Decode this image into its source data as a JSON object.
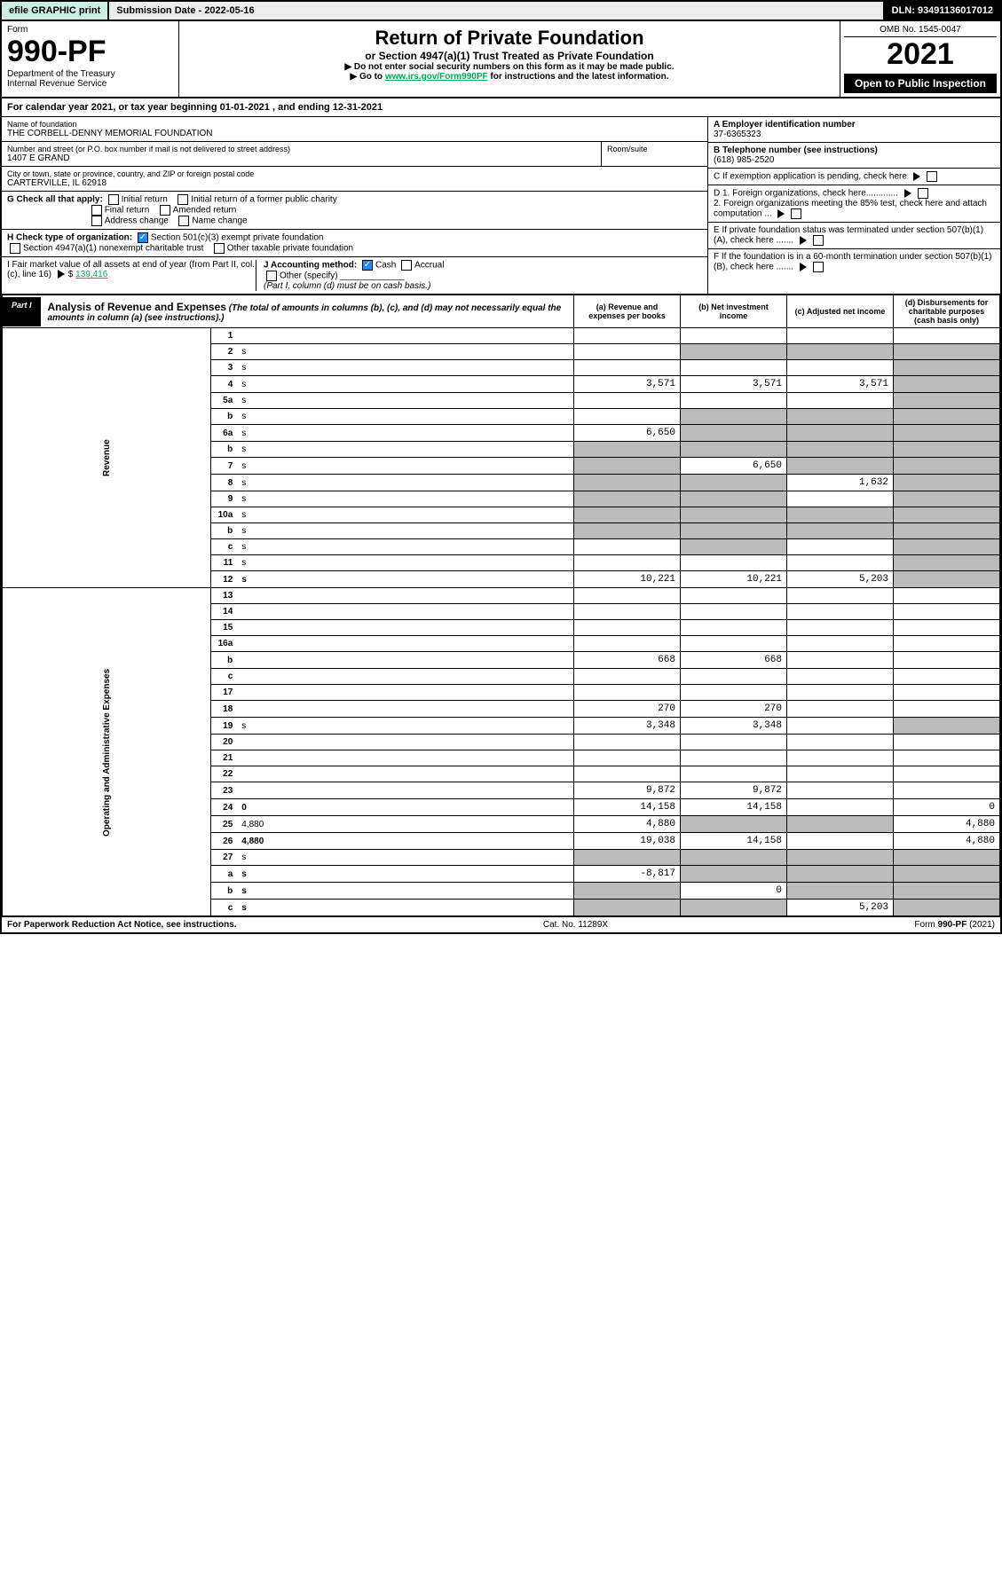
{
  "topbar": {
    "efile": "efile GRAPHIC print",
    "submission": "Submission Date - 2022-05-16",
    "dln": "DLN: 93491136017012"
  },
  "header": {
    "form_label": "Form",
    "form_number": "990-PF",
    "dept": "Department of the Treasury",
    "irs": "Internal Revenue Service",
    "title": "Return of Private Foundation",
    "subtitle": "or Section 4947(a)(1) Trust Treated as Private Foundation",
    "note1": "▶ Do not enter social security numbers on this form as it may be made public.",
    "note2_pre": "▶ Go to ",
    "note2_link": "www.irs.gov/Form990PF",
    "note2_post": " for instructions and the latest information.",
    "omb": "OMB No. 1545-0047",
    "year": "2021",
    "open": "Open to Public Inspection"
  },
  "calyear": "For calendar year 2021, or tax year beginning 01-01-2021       , and ending 12-31-2021",
  "entity": {
    "name_label": "Name of foundation",
    "name": "THE CORBELL-DENNY MEMORIAL FOUNDATION",
    "addr_label": "Number and street (or P.O. box number if mail is not delivered to street address)",
    "addr": "1407 E GRAND",
    "room_label": "Room/suite",
    "city_label": "City or town, state or province, country, and ZIP or foreign postal code",
    "city": "CARTERVILLE, IL  62918",
    "ein_label": "A Employer identification number",
    "ein": "37-6365323",
    "phone_label": "B Telephone number (see instructions)",
    "phone": "(618) 985-2520",
    "c_label": "C If exemption application is pending, check here",
    "d1_label": "D 1. Foreign organizations, check here.............",
    "d2_label": "2. Foreign organizations meeting the 85% test, check here and attach computation ...",
    "e_label": "E If private foundation status was terminated under section 507(b)(1)(A), check here .......",
    "f_label": "F If the foundation is in a 60-month termination under section 507(b)(1)(B), check here .......",
    "g_label": "G Check all that apply:",
    "g_opts": [
      "Initial return",
      "Initial return of a former public charity",
      "Final return",
      "Amended return",
      "Address change",
      "Name change"
    ],
    "h_label": "H Check type of organization:",
    "h_opts": [
      "Section 501(c)(3) exempt private foundation",
      "Section 4947(a)(1) nonexempt charitable trust",
      "Other taxable private foundation"
    ],
    "i_label": "I Fair market value of all assets at end of year (from Part II, col. (c), line 16)",
    "i_value": "139,416",
    "j_label": "J Accounting method:",
    "j_opts": [
      "Cash",
      "Accrual",
      "Other (specify)"
    ],
    "j_note": "(Part I, column (d) must be on cash basis.)"
  },
  "part1": {
    "tab": "Part I",
    "title": "Analysis of Revenue and Expenses",
    "title_note": "(The total of amounts in columns (b), (c), and (d) may not necessarily equal the amounts in column (a) (see instructions).)",
    "col_a": "(a) Revenue and expenses per books",
    "col_b": "(b) Net investment income",
    "col_c": "(c) Adjusted net income",
    "col_d": "(d) Disbursements for charitable purposes (cash basis only)"
  },
  "vlabels": {
    "revenue": "Revenue",
    "expenses": "Operating and Administrative Expenses"
  },
  "rows": [
    {
      "n": "1",
      "d": "",
      "a": "",
      "b": "",
      "c": "",
      "ds": true
    },
    {
      "n": "2",
      "d": "s",
      "a": "",
      "b": "s",
      "c": "s"
    },
    {
      "n": "3",
      "d": "s",
      "a": "",
      "b": "",
      "c": ""
    },
    {
      "n": "4",
      "d": "s",
      "a": "3,571",
      "b": "3,571",
      "c": "3,571"
    },
    {
      "n": "5a",
      "d": "s",
      "a": "",
      "b": "",
      "c": ""
    },
    {
      "n": "b",
      "d": "s",
      "a": "",
      "b": "s",
      "c": "s"
    },
    {
      "n": "6a",
      "d": "s",
      "a": "6,650",
      "b": "s",
      "c": "s"
    },
    {
      "n": "b",
      "d": "s",
      "a": "s",
      "b": "s",
      "c": "s"
    },
    {
      "n": "7",
      "d": "s",
      "a": "s",
      "b": "6,650",
      "c": "s"
    },
    {
      "n": "8",
      "d": "s",
      "a": "s",
      "b": "s",
      "c": "1,632"
    },
    {
      "n": "9",
      "d": "s",
      "a": "s",
      "b": "s",
      "c": ""
    },
    {
      "n": "10a",
      "d": "s",
      "a": "s",
      "b": "s",
      "c": "s"
    },
    {
      "n": "b",
      "d": "s",
      "a": "s",
      "b": "s",
      "c": "s"
    },
    {
      "n": "c",
      "d": "s",
      "a": "",
      "b": "s",
      "c": ""
    },
    {
      "n": "11",
      "d": "s",
      "a": "",
      "b": "",
      "c": ""
    },
    {
      "n": "12",
      "d": "s",
      "a": "10,221",
      "b": "10,221",
      "c": "5,203",
      "bold": true
    }
  ],
  "exp_rows": [
    {
      "n": "13",
      "d": "",
      "a": "",
      "b": "",
      "c": ""
    },
    {
      "n": "14",
      "d": "",
      "a": "",
      "b": "",
      "c": ""
    },
    {
      "n": "15",
      "d": "",
      "a": "",
      "b": "",
      "c": ""
    },
    {
      "n": "16a",
      "d": "",
      "a": "",
      "b": "",
      "c": ""
    },
    {
      "n": "b",
      "d": "",
      "a": "668",
      "b": "668",
      "c": ""
    },
    {
      "n": "c",
      "d": "",
      "a": "",
      "b": "",
      "c": ""
    },
    {
      "n": "17",
      "d": "",
      "a": "",
      "b": "",
      "c": ""
    },
    {
      "n": "18",
      "d": "",
      "a": "270",
      "b": "270",
      "c": ""
    },
    {
      "n": "19",
      "d": "s",
      "a": "3,348",
      "b": "3,348",
      "c": ""
    },
    {
      "n": "20",
      "d": "",
      "a": "",
      "b": "",
      "c": ""
    },
    {
      "n": "21",
      "d": "",
      "a": "",
      "b": "",
      "c": ""
    },
    {
      "n": "22",
      "d": "",
      "a": "",
      "b": "",
      "c": ""
    },
    {
      "n": "23",
      "d": "",
      "a": "9,872",
      "b": "9,872",
      "c": ""
    },
    {
      "n": "24",
      "d": "0",
      "a": "14,158",
      "b": "14,158",
      "c": "",
      "bold": true
    },
    {
      "n": "25",
      "d": "4,880",
      "a": "4,880",
      "b": "s",
      "c": "s"
    },
    {
      "n": "26",
      "d": "4,880",
      "a": "19,038",
      "b": "14,158",
      "c": "",
      "bold": true
    },
    {
      "n": "27",
      "d": "s",
      "a": "s",
      "b": "s",
      "c": "s"
    },
    {
      "n": "a",
      "d": "s",
      "a": "-8,817",
      "b": "s",
      "c": "s",
      "bold": true
    },
    {
      "n": "b",
      "d": "s",
      "a": "s",
      "b": "0",
      "c": "s",
      "bold": true
    },
    {
      "n": "c",
      "d": "s",
      "a": "s",
      "b": "s",
      "c": "5,203",
      "bold": true
    }
  ],
  "footer": {
    "left": "For Paperwork Reduction Act Notice, see instructions.",
    "center": "Cat. No. 11289X",
    "right": "Form 990-PF (2021)"
  }
}
